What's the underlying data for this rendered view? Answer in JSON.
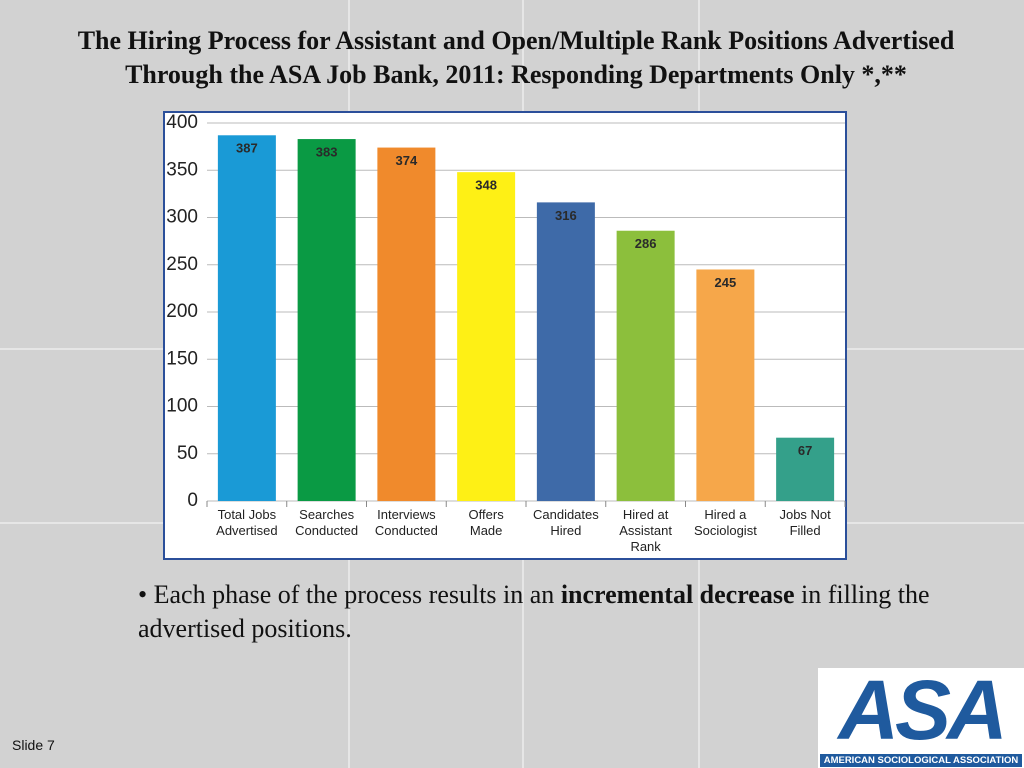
{
  "chart_data": {
    "type": "bar",
    "title": "The Hiring Process for Assistant and Open/Multiple Rank Positions Advertised Through the ASA Job Bank, 2011: Responding Departments Only *,**",
    "categories": [
      "Total Jobs\nAdvertised",
      "Searches\nConducted",
      "Interviews\nConducted",
      "Offers\nMade",
      "Candidates\nHired",
      "Hired at\nAssistant\nRank",
      "Hired a\nSociologist",
      "Jobs Not\nFilled"
    ],
    "values": [
      387,
      383,
      374,
      348,
      316,
      286,
      245,
      67
    ],
    "colors": [
      "#1a9ad6",
      "#0a9a44",
      "#f08a2c",
      "#fef015",
      "#3e6aa8",
      "#8cbf3c",
      "#f6a74a",
      "#34a08a"
    ],
    "ylim": [
      0,
      400
    ],
    "yticks": [
      0,
      50,
      100,
      150,
      200,
      250,
      300,
      350,
      400
    ],
    "grid": true
  },
  "bullet": {
    "marker": "•",
    "parts": [
      "Each phase of the process results in an ",
      "incremental decrease",
      " in filling the advertised positions."
    ]
  },
  "logo": {
    "mark": "ASA",
    "name": "AMERICAN SOCIOLOGICAL ASSOCIATION"
  },
  "footer": {
    "slide": "Slide 7"
  }
}
